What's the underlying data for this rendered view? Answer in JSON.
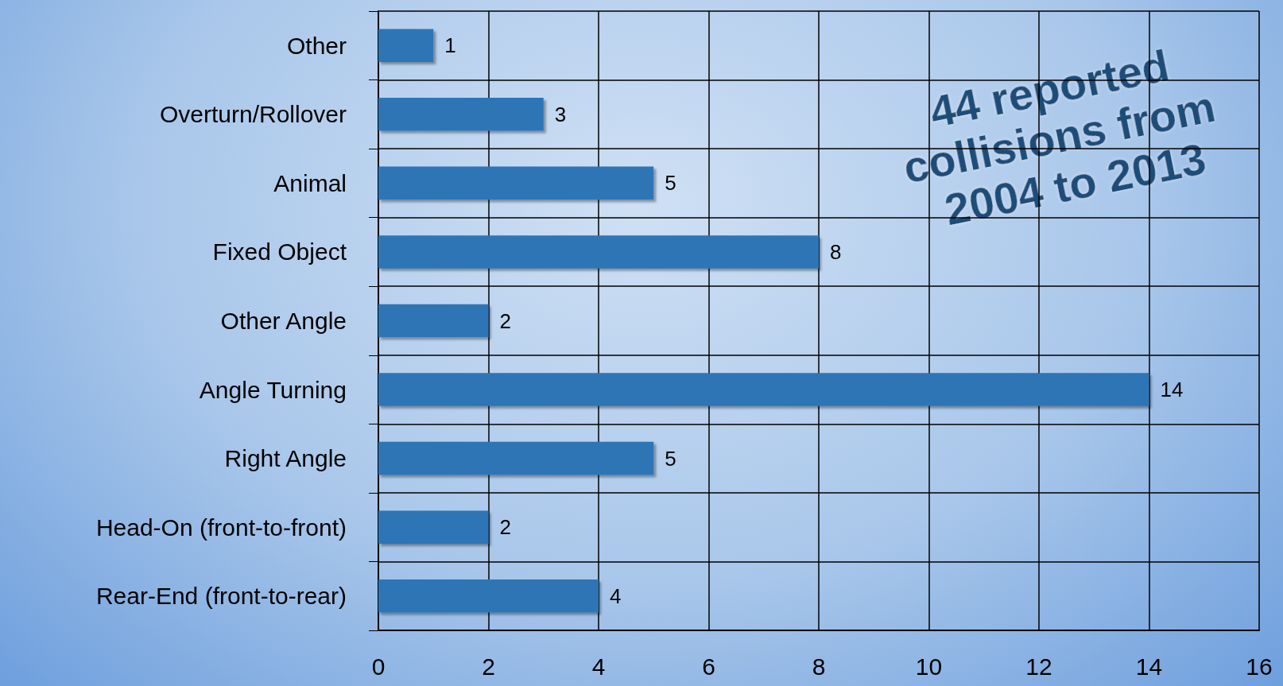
{
  "chart_data": {
    "type": "bar",
    "orientation": "horizontal",
    "categories": [
      "Other",
      "Overturn/Rollover",
      "Animal",
      "Fixed Object",
      "Other Angle",
      "Angle Turning",
      "Right Angle",
      "Head-On (front-to-front)",
      "Rear-End (front-to-rear)"
    ],
    "values": [
      1,
      3,
      5,
      8,
      2,
      14,
      5,
      2,
      4
    ],
    "color": "#2e75b6",
    "xlim": [
      0,
      16
    ],
    "xticks": [
      0,
      2,
      4,
      6,
      8,
      10,
      12,
      14,
      16
    ],
    "grid": true,
    "data_labels": true,
    "annotations": [
      "44 reported collisions from 2004 to 2013"
    ]
  }
}
